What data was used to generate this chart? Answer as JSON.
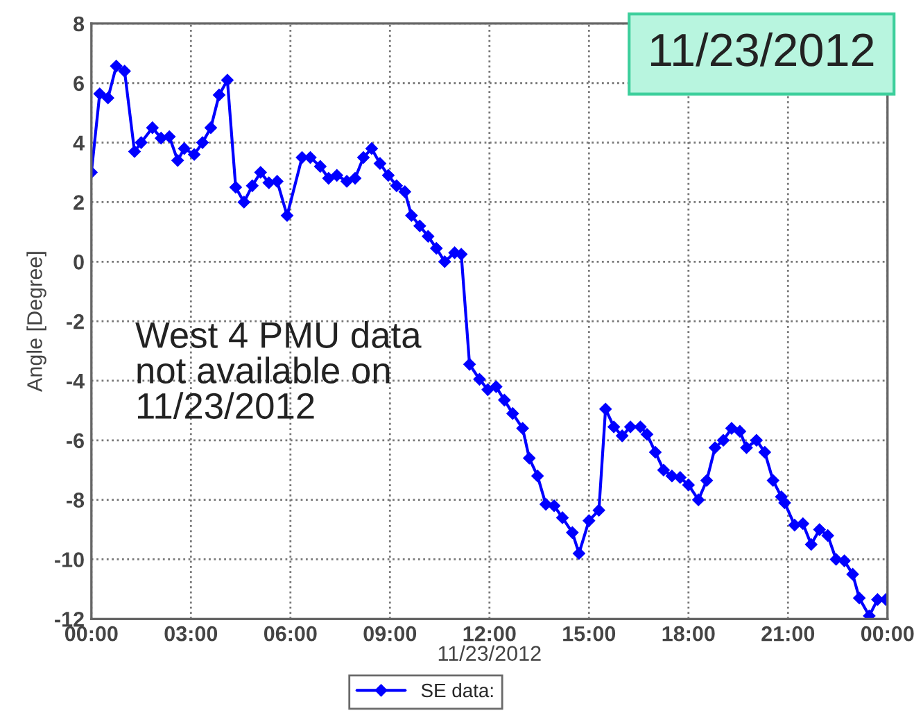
{
  "chart_data": {
    "type": "line",
    "xlabel": "11/23/2012",
    "ylabel": "Angle [Degree]",
    "annotations": [
      "11/23/2012",
      "West 4 PMU data\nnot available on\n11/23/2012"
    ],
    "xlim": [
      0,
      24
    ],
    "ylim": [
      -12,
      8
    ],
    "xticks": [
      {
        "value": 0,
        "label": "00:00"
      },
      {
        "value": 3,
        "label": "03:00"
      },
      {
        "value": 6,
        "label": "06:00"
      },
      {
        "value": 9,
        "label": "09:00"
      },
      {
        "value": 12,
        "label": "12:00"
      },
      {
        "value": 15,
        "label": "15:00"
      },
      {
        "value": 18,
        "label": "18:00"
      },
      {
        "value": 21,
        "label": "21:00"
      },
      {
        "value": 24,
        "label": "00:00"
      }
    ],
    "yticks": [
      -12,
      -10,
      -8,
      -6,
      -4,
      -2,
      0,
      2,
      4,
      6,
      8
    ],
    "grid": true,
    "legend": "bottom",
    "marker": "diamond",
    "line_style": "solid",
    "series": [
      {
        "name": "SE data:",
        "color": "#0000ff",
        "x": [
          0,
          0.25,
          0.5,
          0.75,
          1.0,
          1.3,
          1.5,
          1.84,
          2.1,
          2.35,
          2.6,
          2.8,
          3.1,
          3.35,
          3.6,
          3.85,
          4.1,
          4.35,
          4.6,
          4.85,
          5.1,
          5.35,
          5.6,
          5.9,
          6.35,
          6.6,
          6.9,
          7.15,
          7.4,
          7.7,
          7.95,
          8.2,
          8.45,
          8.7,
          8.95,
          9.2,
          9.45,
          9.65,
          9.9,
          10.15,
          10.4,
          10.65,
          10.95,
          11.15,
          11.4,
          11.7,
          11.95,
          12.2,
          12.45,
          12.7,
          13.0,
          13.2,
          13.45,
          13.7,
          13.95,
          14.2,
          14.5,
          14.7,
          15.0,
          15.3,
          15.5,
          15.75,
          16.0,
          16.25,
          16.55,
          16.75,
          17.0,
          17.25,
          17.5,
          17.75,
          18.0,
          18.3,
          18.55,
          18.8,
          19.05,
          19.3,
          19.55,
          19.75,
          20.05,
          20.3,
          20.55,
          20.8,
          20.9,
          21.2,
          21.45,
          21.7,
          21.95,
          22.2,
          22.45,
          22.7,
          22.95,
          23.15,
          23.45,
          23.7,
          23.95
        ],
        "values": [
          3.0,
          5.64,
          5.5,
          6.57,
          6.4,
          3.7,
          4.0,
          4.5,
          4.15,
          4.2,
          3.4,
          3.8,
          3.6,
          4.0,
          4.5,
          5.6,
          6.1,
          2.5,
          2.0,
          2.55,
          3.0,
          2.65,
          2.7,
          1.55,
          3.5,
          3.5,
          3.2,
          2.8,
          2.9,
          2.7,
          2.8,
          3.5,
          3.8,
          3.3,
          2.9,
          2.55,
          2.35,
          1.55,
          1.2,
          0.85,
          0.45,
          0.0,
          0.3,
          0.25,
          -3.45,
          -3.95,
          -4.3,
          -4.2,
          -4.65,
          -5.1,
          -5.6,
          -6.6,
          -7.2,
          -8.15,
          -8.2,
          -8.6,
          -9.1,
          -9.8,
          -8.7,
          -8.35,
          -4.95,
          -5.55,
          -5.85,
          -5.55,
          -5.55,
          -5.8,
          -6.4,
          -7.0,
          -7.2,
          -7.25,
          -7.5,
          -8.0,
          -7.35,
          -6.25,
          -6.0,
          -5.6,
          -5.7,
          -6.25,
          -6.0,
          -6.4,
          -7.35,
          -7.9,
          -8.1,
          -8.85,
          -8.8,
          -9.5,
          -9.0,
          -9.2,
          -10.0,
          -10.05,
          -10.5,
          -11.3,
          -11.9,
          -11.35,
          -11.35
        ]
      }
    ]
  }
}
